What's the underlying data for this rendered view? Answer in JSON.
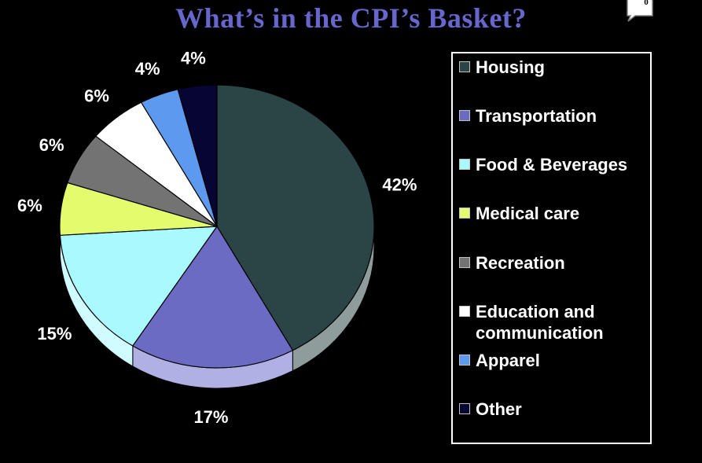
{
  "title": "What’s in the CPI’s Basket?",
  "note_badge": "0",
  "chart_data": {
    "type": "pie",
    "title": "What’s in the CPI’s Basket?",
    "labels": [
      "Housing",
      "Transportation",
      "Food & Beverages",
      "Medical care",
      "Recreation",
      "Education and\ncommunication",
      "Apparel",
      "Other"
    ],
    "values": [
      42,
      17,
      15,
      6,
      6,
      6,
      4,
      4
    ],
    "value_labels": [
      "42%",
      "17%",
      "15%",
      "6%",
      "6%",
      "6%",
      "4%",
      "4%"
    ],
    "colors": [
      "#2b4446",
      "#6b6bc4",
      "#a8faff",
      "#e3fb6c",
      "#737373",
      "#ffffff",
      "#5d9aef",
      "#060533"
    ],
    "legend_position": "right",
    "style": "3d"
  }
}
